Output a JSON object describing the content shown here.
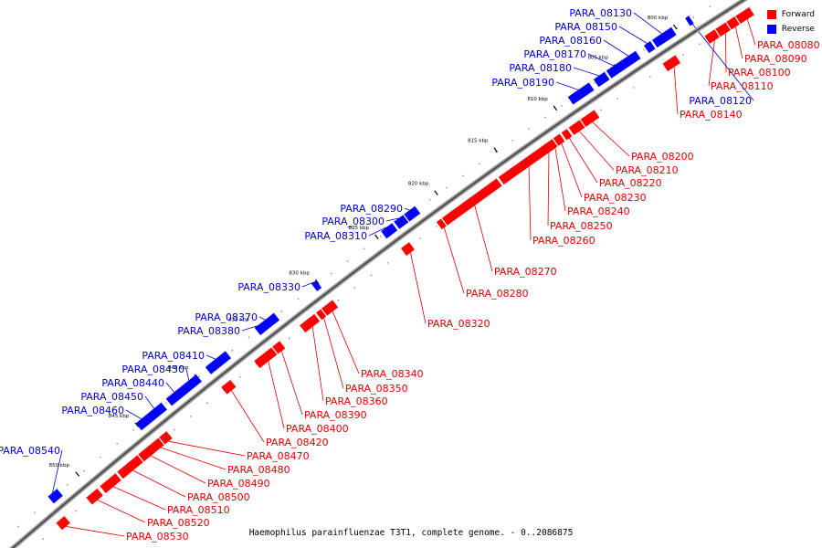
{
  "legend": {
    "forward_label": "Forward",
    "reverse_label": "Reverse",
    "forward_color": "#ff0000",
    "reverse_color": "#0000ff"
  },
  "caption": "Haemophilus parainfluenzae T3T1, complete genome. - 0..2086875",
  "ticks": [
    "800 kbp",
    "805 kbp",
    "810 kbp",
    "815 kbp",
    "820 kbp",
    "825 kbp",
    "830 kbp",
    "835 kbp",
    "840 kbp",
    "845 kbp",
    "850 kbp"
  ],
  "forward_genes": [
    "PARA_08080",
    "PARA_08090",
    "PARA_08100",
    "PARA_08110",
    "PARA_08140",
    "PARA_08200",
    "PARA_08210",
    "PARA_08220",
    "PARA_08230",
    "PARA_08240",
    "PARA_08250",
    "PARA_08260",
    "PARA_08270",
    "PARA_08280",
    "PARA_08320",
    "PARA_08340",
    "PARA_08350",
    "PARA_08360",
    "PARA_08390",
    "PARA_08400",
    "PARA_08420",
    "PARA_08470",
    "PARA_08480",
    "PARA_08490",
    "PARA_08500",
    "PARA_08510",
    "PARA_08520",
    "PARA_08530"
  ],
  "reverse_genes": [
    "PARA_08130",
    "PARA_08150",
    "PARA_08160",
    "PARA_08170",
    "PARA_08180",
    "PARA_08190",
    "PARA_08120",
    "PARA_08290",
    "PARA_08300",
    "PARA_08310",
    "PARA_08330",
    "PARA_08370",
    "PARA_08380",
    "PARA_08410",
    "PARA_08430",
    "PARA_08440",
    "PARA_08450",
    "PARA_08460",
    "PARA_08540"
  ]
}
